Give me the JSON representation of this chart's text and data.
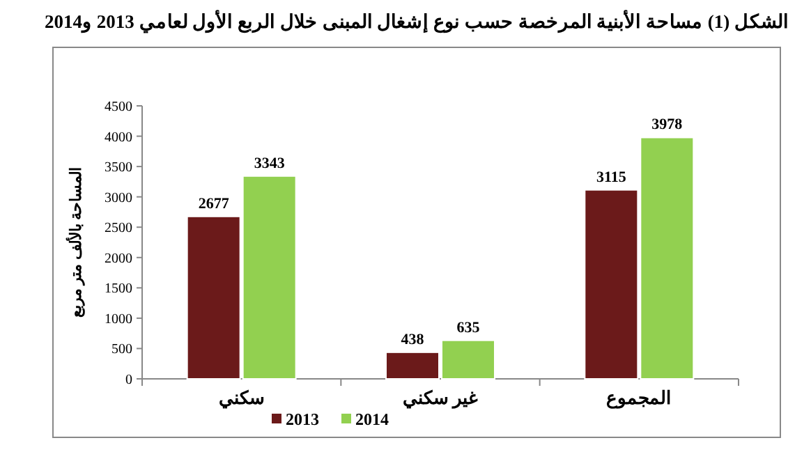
{
  "chart_data": {
    "type": "bar",
    "title": "الشكل (1) مساحة الأبنية المرخصة حسب نوع إشغال المبنى خلال الربع الأول لعامي 2013 و2014",
    "ylabel": "المساحة بالألف متر مربع",
    "categories": [
      "سكني",
      "غير سكني",
      "المجموع"
    ],
    "series": [
      {
        "name": "2013",
        "color": "#6b1a1a",
        "values": [
          2677,
          438,
          3115
        ]
      },
      {
        "name": "2014",
        "color": "#92d050",
        "values": [
          3343,
          635,
          3978
        ]
      }
    ],
    "ylim": [
      0,
      4500
    ],
    "yticks": [
      0,
      500,
      1000,
      1500,
      2000,
      2500,
      3000,
      3500,
      4000,
      4500
    ],
    "data_labels": true,
    "legend": "bottom"
  }
}
